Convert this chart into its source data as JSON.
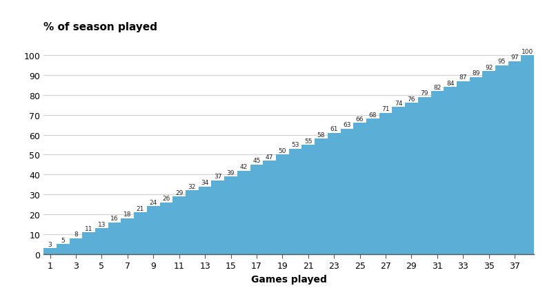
{
  "title": "% of season played",
  "xlabel": "Games played",
  "ylabel": "",
  "bar_color": "#5baed6",
  "background_color": "#ffffff",
  "total_games": 38,
  "x_values": [
    1,
    2,
    3,
    4,
    5,
    6,
    7,
    8,
    9,
    10,
    11,
    12,
    13,
    14,
    15,
    16,
    17,
    18,
    19,
    20,
    21,
    22,
    23,
    24,
    25,
    26,
    27,
    28,
    29,
    30,
    31,
    32,
    33,
    34,
    35,
    36,
    37,
    38
  ],
  "y_values": [
    3,
    5,
    8,
    11,
    13,
    16,
    18,
    21,
    24,
    26,
    29,
    32,
    34,
    37,
    39,
    42,
    45,
    47,
    50,
    53,
    55,
    58,
    61,
    63,
    66,
    68,
    71,
    74,
    76,
    79,
    82,
    84,
    87,
    89,
    92,
    95,
    97,
    100
  ],
  "x_ticks": [
    1,
    3,
    5,
    7,
    9,
    11,
    13,
    15,
    17,
    19,
    21,
    23,
    25,
    27,
    29,
    31,
    33,
    35,
    37
  ],
  "y_ticks": [
    0,
    10,
    20,
    30,
    40,
    50,
    60,
    70,
    80,
    90,
    100
  ],
  "label_fontsize": 6.5,
  "axis_label_fontsize": 10,
  "title_fontsize": 11
}
